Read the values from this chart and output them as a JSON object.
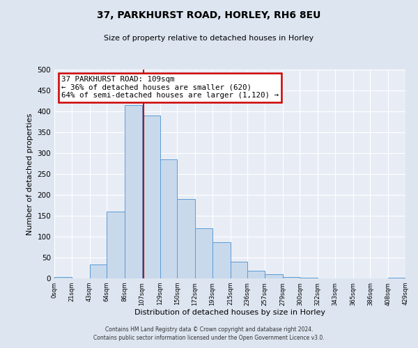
{
  "title": "37, PARKHURST ROAD, HORLEY, RH6 8EU",
  "subtitle": "Size of property relative to detached houses in Horley",
  "xlabel": "Distribution of detached houses by size in Horley",
  "ylabel": "Number of detached properties",
  "bin_edges": [
    0,
    21,
    43,
    64,
    86,
    107,
    129,
    150,
    172,
    193,
    215,
    236,
    257,
    279,
    300,
    322,
    343,
    365,
    386,
    408,
    429
  ],
  "bin_counts": [
    4,
    0,
    33,
    160,
    415,
    390,
    285,
    190,
    120,
    86,
    40,
    18,
    10,
    3,
    1,
    0,
    0,
    0,
    0,
    2
  ],
  "bar_face_color": "#c9d9ec",
  "bar_edge_color": "#5b9bd5",
  "property_line_x": 109,
  "property_line_color": "#cc0000",
  "annotation_line1": "37 PARKHURST ROAD: 109sqm",
  "annotation_line2": "← 36% of detached houses are smaller (620)",
  "annotation_line3": "64% of semi-detached houses are larger (1,120) →",
  "annotation_box_color": "#cc0000",
  "ylim": [
    0,
    500
  ],
  "xlim": [
    0,
    429
  ],
  "tick_labels": [
    "0sqm",
    "21sqm",
    "43sqm",
    "64sqm",
    "86sqm",
    "107sqm",
    "129sqm",
    "150sqm",
    "172sqm",
    "193sqm",
    "215sqm",
    "236sqm",
    "257sqm",
    "279sqm",
    "300sqm",
    "322sqm",
    "343sqm",
    "365sqm",
    "386sqm",
    "408sqm",
    "429sqm"
  ],
  "footer_line1": "Contains HM Land Registry data © Crown copyright and database right 2024.",
  "footer_line2": "Contains public sector information licensed under the Open Government Licence v3.0.",
  "background_color": "#dde5f0",
  "plot_background_color": "#e8edf5"
}
